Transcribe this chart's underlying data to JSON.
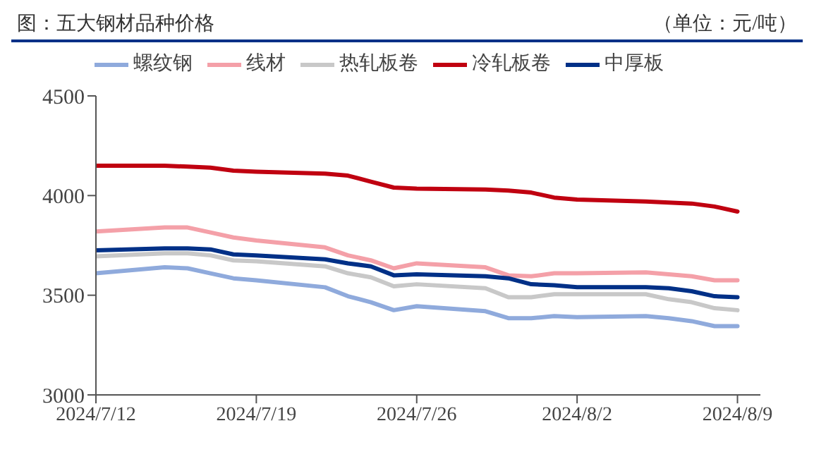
{
  "chart_data": {
    "type": "line",
    "title": "图：五大钢材品种价格",
    "annotations": [
      "（单位：元/吨）"
    ],
    "x": [
      "2024-07-12",
      "2024-07-15",
      "2024-07-16",
      "2024-07-17",
      "2024-07-18",
      "2024-07-19",
      "2024-07-22",
      "2024-07-23",
      "2024-07-24",
      "2024-07-25",
      "2024-07-26",
      "2024-07-29",
      "2024-07-30",
      "2024-07-31",
      "2024-08-01",
      "2024-08-02",
      "2024-08-05",
      "2024-08-06",
      "2024-08-07",
      "2024-08-08",
      "2024-08-09"
    ],
    "series": [
      {
        "name": "螺纹钢",
        "color": "#8faadc",
        "values": [
          3610,
          3640,
          3635,
          3610,
          3585,
          3575,
          3540,
          3495,
          3465,
          3425,
          3445,
          3420,
          3385,
          3385,
          3395,
          3390,
          3395,
          3385,
          3370,
          3345,
          3345
        ]
      },
      {
        "name": "线材",
        "color": "#f4a0a8",
        "values": [
          3820,
          3840,
          3840,
          3815,
          3790,
          3775,
          3740,
          3700,
          3675,
          3635,
          3660,
          3640,
          3600,
          3595,
          3610,
          3610,
          3615,
          3605,
          3595,
          3575,
          3575
        ]
      },
      {
        "name": "热轧板卷",
        "color": "#c8c8c8",
        "values": [
          3695,
          3710,
          3710,
          3700,
          3675,
          3670,
          3645,
          3610,
          3590,
          3545,
          3555,
          3535,
          3490,
          3490,
          3505,
          3505,
          3505,
          3480,
          3465,
          3435,
          3425
        ]
      },
      {
        "name": "冷轧板卷",
        "color": "#c00010",
        "values": [
          4150,
          4150,
          4145,
          4140,
          4125,
          4120,
          4110,
          4100,
          4070,
          4040,
          4035,
          4030,
          4025,
          4015,
          3990,
          3980,
          3970,
          3965,
          3960,
          3945,
          3920
        ]
      },
      {
        "name": "中厚板",
        "color": "#003087",
        "values": [
          3725,
          3735,
          3735,
          3730,
          3705,
          3700,
          3680,
          3660,
          3645,
          3600,
          3605,
          3595,
          3585,
          3555,
          3550,
          3540,
          3540,
          3535,
          3520,
          3495,
          3490
        ]
      }
    ],
    "xlim": [
      "2024-07-12",
      "2024-08-10"
    ],
    "xticks": [
      {
        "value": "2024-07-12",
        "label": "2024/7/12"
      },
      {
        "value": "2024-07-19",
        "label": "2024/7/19"
      },
      {
        "value": "2024-07-26",
        "label": "2024/7/26"
      },
      {
        "value": "2024-08-02",
        "label": "2024/8/2"
      },
      {
        "value": "2024-08-09",
        "label": "2024/8/9"
      }
    ],
    "ylim": [
      3000,
      4500
    ],
    "yticks": [
      3000,
      3500,
      4000,
      4500
    ],
    "legend": "top",
    "marker": "none",
    "line_style": "solid"
  }
}
